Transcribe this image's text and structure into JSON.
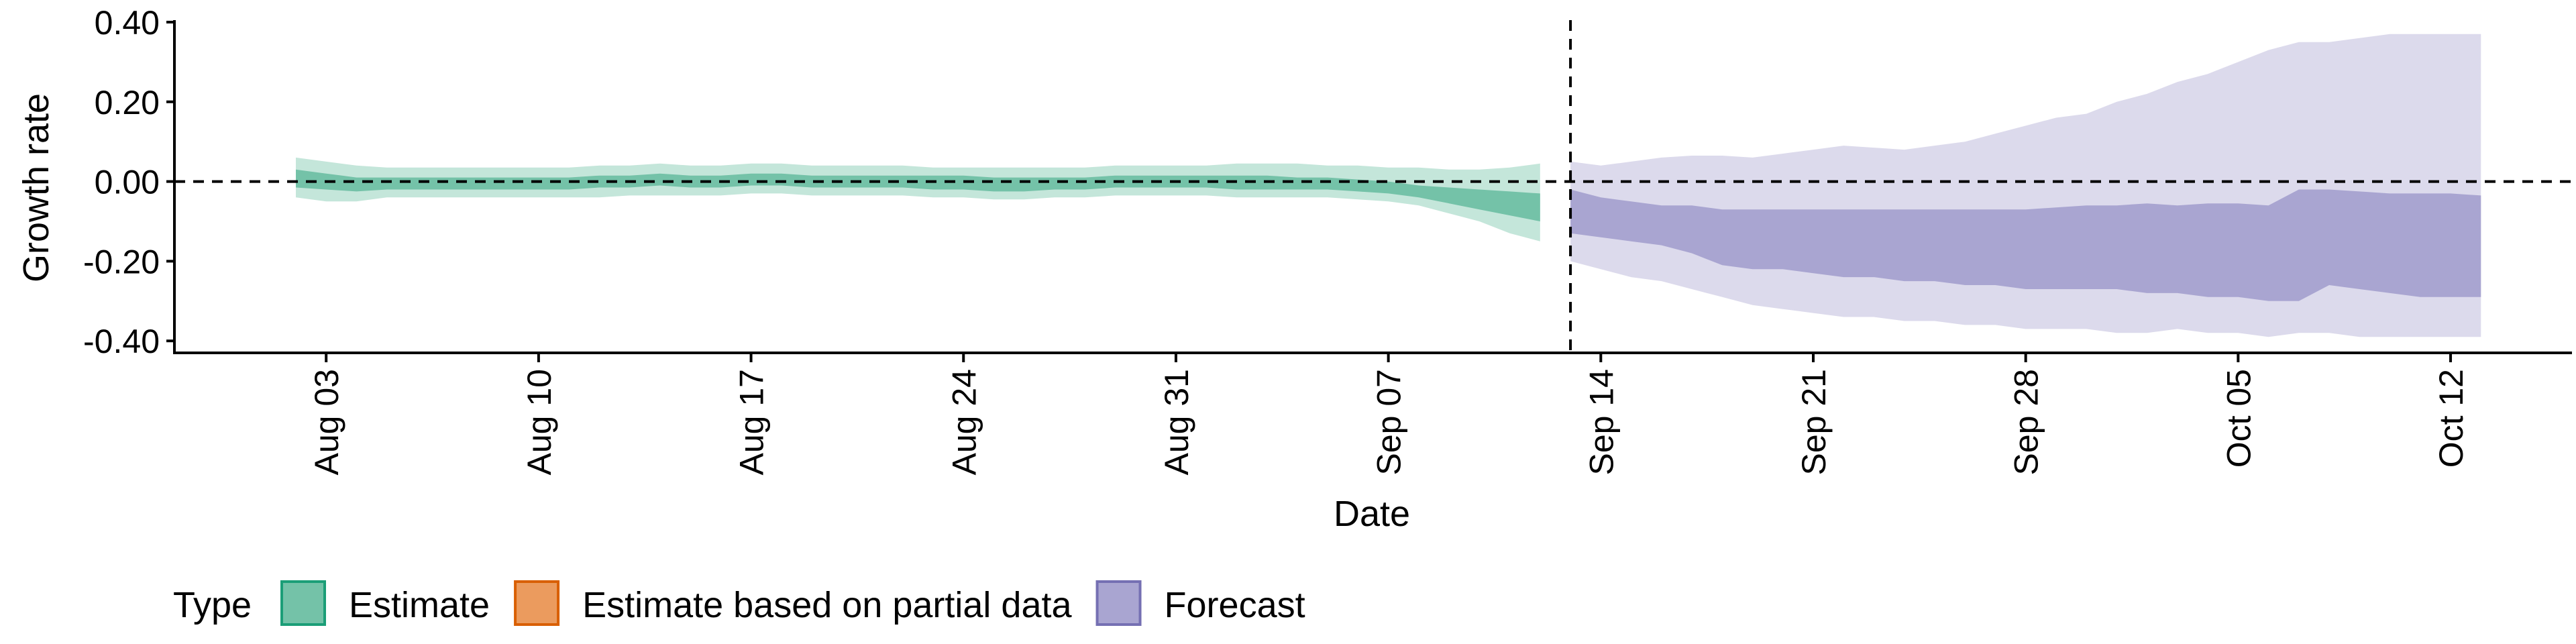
{
  "chart_data": {
    "type": "area",
    "xlabel": "Date",
    "ylabel": "Growth rate",
    "ylim": [
      -0.43,
      0.405
    ],
    "xlim": [
      "2021-07-29",
      "2021-10-16"
    ],
    "y_ticks": [
      -0.4,
      -0.2,
      0.0,
      0.2,
      0.4
    ],
    "y_tick_labels": [
      "-0.40",
      "-0.20",
      "0.00",
      "0.20",
      "0.40"
    ],
    "x_ticks": [
      "2021-08-03",
      "2021-08-10",
      "2021-08-17",
      "2021-08-24",
      "2021-08-31",
      "2021-09-07",
      "2021-09-14",
      "2021-09-21",
      "2021-09-28",
      "2021-10-05",
      "2021-10-12"
    ],
    "x_tick_labels": [
      "Aug 03",
      "Aug 10",
      "Aug 17",
      "Aug 24",
      "Aug 31",
      "Sep 07",
      "Sep 14",
      "Sep 21",
      "Sep 28",
      "Oct 05",
      "Oct 12"
    ],
    "reference_line_y": 0.0,
    "vertical_line_x": "2021-09-13",
    "grid": false,
    "legend": {
      "title": "Type",
      "position": "bottom",
      "entries": [
        {
          "label": "Estimate",
          "fill": "#74c2a8",
          "border": "#1b9e77"
        },
        {
          "label": "Estimate based on partial data",
          "fill": "#eb9b5e",
          "border": "#d95f02"
        },
        {
          "label": "Forecast",
          "fill": "#a9a5d1",
          "border": "#7570b3"
        }
      ]
    },
    "series": [
      {
        "name": "Estimate",
        "colors": {
          "inner": "#74c2a8",
          "outer": "#c4e6da"
        },
        "x": [
          "2021-08-02",
          "2021-08-03",
          "2021-08-04",
          "2021-08-05",
          "2021-08-06",
          "2021-08-07",
          "2021-08-08",
          "2021-08-09",
          "2021-08-10",
          "2021-08-11",
          "2021-08-12",
          "2021-08-13",
          "2021-08-14",
          "2021-08-15",
          "2021-08-16",
          "2021-08-17",
          "2021-08-18",
          "2021-08-19",
          "2021-08-20",
          "2021-08-21",
          "2021-08-22",
          "2021-08-23",
          "2021-08-24",
          "2021-08-25",
          "2021-08-26",
          "2021-08-27",
          "2021-08-28",
          "2021-08-29",
          "2021-08-30",
          "2021-08-31",
          "2021-09-01",
          "2021-09-02",
          "2021-09-03",
          "2021-09-04",
          "2021-09-05",
          "2021-09-06",
          "2021-09-07",
          "2021-09-08",
          "2021-09-09",
          "2021-09-10",
          "2021-09-11",
          "2021-09-12"
        ],
        "lower_outer": [
          -0.04,
          -0.05,
          -0.05,
          -0.04,
          -0.04,
          -0.04,
          -0.04,
          -0.04,
          -0.04,
          -0.04,
          -0.04,
          -0.035,
          -0.035,
          -0.035,
          -0.035,
          -0.03,
          -0.03,
          -0.035,
          -0.035,
          -0.035,
          -0.035,
          -0.04,
          -0.04,
          -0.045,
          -0.045,
          -0.04,
          -0.04,
          -0.035,
          -0.035,
          -0.035,
          -0.035,
          -0.04,
          -0.04,
          -0.04,
          -0.04,
          -0.045,
          -0.05,
          -0.06,
          -0.08,
          -0.1,
          -0.13,
          -0.15
        ],
        "lower_inner": [
          -0.015,
          -0.02,
          -0.025,
          -0.02,
          -0.02,
          -0.02,
          -0.02,
          -0.02,
          -0.02,
          -0.02,
          -0.015,
          -0.015,
          -0.01,
          -0.015,
          -0.015,
          -0.01,
          -0.01,
          -0.015,
          -0.015,
          -0.015,
          -0.015,
          -0.02,
          -0.02,
          -0.025,
          -0.025,
          -0.02,
          -0.02,
          -0.015,
          -0.015,
          -0.015,
          -0.015,
          -0.02,
          -0.02,
          -0.02,
          -0.02,
          -0.025,
          -0.03,
          -0.04,
          -0.055,
          -0.07,
          -0.085,
          -0.1
        ],
        "upper_inner": [
          0.03,
          0.02,
          0.01,
          0.01,
          0.01,
          0.01,
          0.01,
          0.01,
          0.01,
          0.01,
          0.015,
          0.015,
          0.02,
          0.015,
          0.015,
          0.02,
          0.02,
          0.015,
          0.015,
          0.015,
          0.015,
          0.015,
          0.015,
          0.01,
          0.01,
          0.01,
          0.01,
          0.015,
          0.015,
          0.015,
          0.015,
          0.015,
          0.015,
          0.01,
          0.01,
          0.005,
          0.0,
          -0.01,
          -0.015,
          -0.02,
          -0.025,
          -0.03
        ],
        "upper_outer": [
          0.06,
          0.05,
          0.04,
          0.035,
          0.035,
          0.035,
          0.035,
          0.035,
          0.035,
          0.035,
          0.04,
          0.04,
          0.045,
          0.04,
          0.04,
          0.045,
          0.045,
          0.04,
          0.04,
          0.04,
          0.04,
          0.035,
          0.035,
          0.035,
          0.035,
          0.035,
          0.035,
          0.04,
          0.04,
          0.04,
          0.04,
          0.045,
          0.045,
          0.045,
          0.04,
          0.04,
          0.035,
          0.035,
          0.03,
          0.03,
          0.035,
          0.045
        ]
      },
      {
        "name": "Forecast",
        "colors": {
          "inner": "#a9a5d1",
          "outer": "#dcdaec"
        },
        "x": [
          "2021-09-13",
          "2021-09-14",
          "2021-09-15",
          "2021-09-16",
          "2021-09-17",
          "2021-09-18",
          "2021-09-19",
          "2021-09-20",
          "2021-09-21",
          "2021-09-22",
          "2021-09-23",
          "2021-09-24",
          "2021-09-25",
          "2021-09-26",
          "2021-09-27",
          "2021-09-28",
          "2021-09-29",
          "2021-09-30",
          "2021-10-01",
          "2021-10-02",
          "2021-10-03",
          "2021-10-04",
          "2021-10-05",
          "2021-10-06",
          "2021-10-07",
          "2021-10-08",
          "2021-10-09",
          "2021-10-10",
          "2021-10-11",
          "2021-10-12",
          "2021-10-13"
        ],
        "lower_outer": [
          -0.2,
          -0.22,
          -0.24,
          -0.25,
          -0.27,
          -0.29,
          -0.31,
          -0.32,
          -0.33,
          -0.34,
          -0.34,
          -0.35,
          -0.35,
          -0.36,
          -0.36,
          -0.37,
          -0.37,
          -0.37,
          -0.38,
          -0.38,
          -0.37,
          -0.38,
          -0.38,
          -0.39,
          -0.38,
          -0.38,
          -0.39,
          -0.39,
          -0.39,
          -0.39,
          -0.39
        ],
        "lower_inner": [
          -0.13,
          -0.14,
          -0.15,
          -0.16,
          -0.18,
          -0.21,
          -0.22,
          -0.22,
          -0.23,
          -0.24,
          -0.24,
          -0.25,
          -0.25,
          -0.26,
          -0.26,
          -0.27,
          -0.27,
          -0.27,
          -0.27,
          -0.28,
          -0.28,
          -0.29,
          -0.29,
          -0.3,
          -0.3,
          -0.26,
          -0.27,
          -0.28,
          -0.29,
          -0.29,
          -0.29
        ],
        "upper_inner": [
          -0.02,
          -0.04,
          -0.05,
          -0.06,
          -0.06,
          -0.07,
          -0.07,
          -0.07,
          -0.07,
          -0.07,
          -0.07,
          -0.07,
          -0.07,
          -0.07,
          -0.07,
          -0.07,
          -0.065,
          -0.06,
          -0.06,
          -0.055,
          -0.06,
          -0.055,
          -0.055,
          -0.06,
          -0.02,
          -0.02,
          -0.025,
          -0.03,
          -0.03,
          -0.03,
          -0.035
        ],
        "upper_outer": [
          0.05,
          0.04,
          0.05,
          0.06,
          0.065,
          0.065,
          0.06,
          0.07,
          0.08,
          0.09,
          0.085,
          0.08,
          0.09,
          0.1,
          0.12,
          0.14,
          0.16,
          0.17,
          0.2,
          0.22,
          0.25,
          0.27,
          0.3,
          0.33,
          0.35,
          0.35,
          0.36,
          0.37,
          0.37,
          0.37,
          0.37
        ]
      }
    ]
  }
}
